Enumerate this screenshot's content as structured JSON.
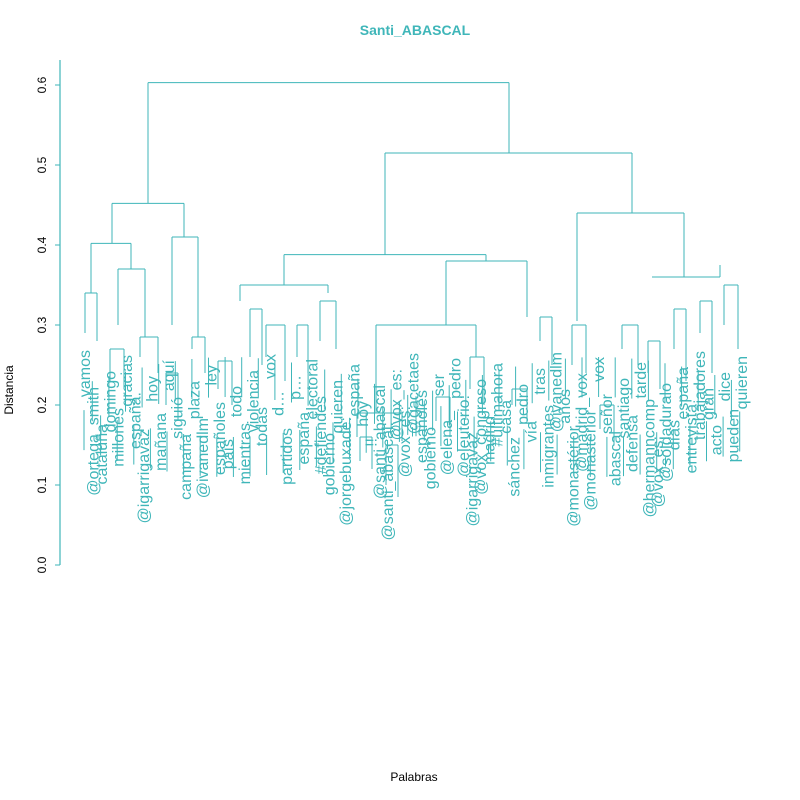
{
  "chart_data": {
    "type": "dendrogram",
    "title": "Santi_ABASCAL",
    "xlabel": "Palabras",
    "ylabel": "Distancia",
    "ylim": [
      0,
      0.6
    ],
    "yticks": [
      "0.0",
      "0.1",
      "0.2",
      "0.3",
      "0.4",
      "0.5",
      "0.6"
    ],
    "color": "#3fb6b9",
    "merges": [
      {
        "height": 0.603,
        "children": [
          "A",
          "B"
        ]
      },
      {
        "height": 0.515,
        "children": [
          "B1",
          "B2"
        ]
      },
      {
        "height": 0.452,
        "children": [
          "A1",
          "A2"
        ]
      },
      {
        "height": 0.44,
        "children": [
          "B2a",
          "B2b"
        ]
      },
      {
        "height": 0.41,
        "children": [
          "A2a",
          "A2b"
        ]
      },
      {
        "height": 0.402,
        "children": [
          "A1a",
          "A1b"
        ]
      },
      {
        "height": 0.388,
        "children": [
          "B1a",
          "B1b"
        ]
      },
      {
        "height": 0.38,
        "children": [
          "B1b1",
          "B1b2"
        ]
      },
      {
        "height": 0.36,
        "children": [
          "B2b1",
          "B2b2"
        ]
      },
      {
        "height": 0.35,
        "children": [
          "B1a1",
          "B1a2"
        ]
      },
      {
        "height": 0.3,
        "children": [
          "B1b1a",
          "B1b1b"
        ]
      },
      {
        "height": 0.19,
        "children": [
          "B1b1a1",
          "B1b1a2"
        ]
      }
    ],
    "leaves": [
      "vamos",
      "@ortega_smith",
      "cataluña",
      "domingo",
      "millones",
      "gracias",
      "españa.",
      "@igarrigavaz",
      "hoy",
      "mañana",
      "aquí",
      "siguió",
      "campaña",
      "plaza",
      "@ivanedlm",
      "ley",
      "españoles",
      "país",
      "todo",
      "mientras",
      "violencia",
      "todas",
      "vox",
      "d…",
      "partidos",
      "p…",
      "españa",
      "electoral",
      "#defiendes",
      "gobierno",
      "quieren",
      "@jorgebuxade:",
      "españa",
      "hoy",
      "!!",
      "@santi_abascal",
      "@santi_abascal:",
      "@vox_es:",
      "@vox_es:",
      "@gacetaes",
      "españoles",
      "gobierno",
      "ser",
      "@elena_",
      "pedro",
      "@eleuterio:",
      "@igarrigavaz",
      "@vox_congreso",
      "madrid",
      "#ultimahora",
      "casa",
      "sánchez",
      "pedro",
      "vía",
      "tras",
      "inmigrantes",
      "@ivanedlm",
      "años",
      "@monastérior",
      "@madrid_vox",
      "@monasterior",
      "vox",
      "señor",
      "abascal",
      "santiago",
      "defensa",
      "tarde",
      "@hermanncomp",
      "@vox_es:",
      "@soldaduralo",
      "días",
      "españa",
      "entrevista",
      "trabajadores",
      "gran",
      "acto",
      "dice",
      "pueden",
      "quieren"
    ]
  }
}
